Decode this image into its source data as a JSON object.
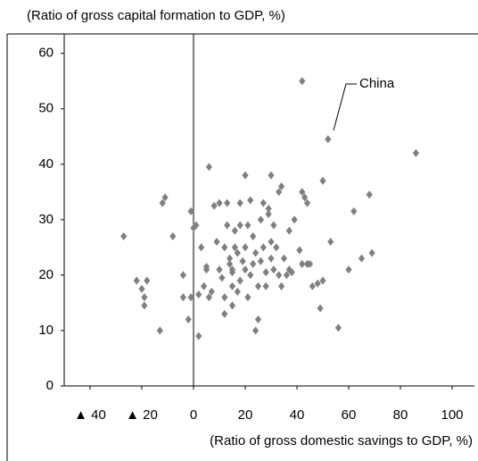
{
  "chart_data": {
    "type": "scatter",
    "y_label": "(Ratio of gross capital formation to GDP, %)",
    "x_label": "(Ratio of gross domestic savings to GDP, %)",
    "annotation": "China",
    "color": "#808080",
    "xlim": [
      -50,
      110
    ],
    "ylim": [
      0,
      63.5
    ],
    "xticks": [
      {
        "value": -40,
        "label": "▲ 40"
      },
      {
        "value": -20,
        "label": "▲ 20"
      },
      0,
      20,
      40,
      60,
      80,
      100
    ],
    "yticks": [
      0,
      10,
      20,
      30,
      40,
      50,
      60
    ],
    "x": [
      -27,
      -22,
      -20,
      -19,
      -18,
      -19,
      -13,
      -12,
      -11,
      -8,
      -4,
      -4,
      -2,
      -1,
      -1,
      1,
      0,
      2,
      2,
      3,
      5,
      4,
      5,
      6,
      6,
      7,
      8,
      9,
      10,
      10,
      11,
      12,
      12,
      12,
      13,
      13,
      14,
      14,
      15,
      15,
      15,
      15,
      16,
      16,
      17,
      17,
      18,
      18,
      18,
      19,
      20,
      20,
      20,
      21,
      21,
      22,
      22,
      23,
      23,
      24,
      24,
      25,
      25,
      26,
      26,
      27,
      27,
      28,
      28,
      29,
      29,
      30,
      30,
      30,
      31,
      31,
      32,
      33,
      33,
      34,
      34,
      35,
      36,
      37,
      37,
      38,
      39,
      41,
      42,
      42,
      42,
      43,
      44,
      44,
      45,
      46,
      48,
      50,
      49,
      50,
      52,
      53,
      56,
      60,
      62,
      65,
      68,
      69,
      86
    ],
    "y": [
      27,
      19,
      17.5,
      16,
      19,
      14.5,
      10,
      33,
      34,
      27,
      20,
      16,
      12,
      16,
      31.5,
      29,
      28.5,
      9,
      16.5,
      25,
      21,
      18,
      21.5,
      39.5,
      16,
      17,
      32.5,
      26,
      21,
      33,
      19.5,
      13,
      25,
      16,
      29,
      33,
      23,
      22,
      21,
      20.5,
      18,
      14.5,
      25,
      28,
      24,
      17,
      33,
      29,
      19,
      22.5,
      21,
      38,
      25,
      16,
      29,
      33.5,
      20,
      22,
      27,
      24,
      10,
      18,
      12,
      22.5,
      30,
      33,
      25,
      18,
      20.5,
      31,
      32,
      23,
      26,
      38,
      21,
      29,
      25,
      20,
      35,
      36,
      18,
      23,
      20,
      21,
      28,
      20.5,
      30,
      24.5,
      22,
      35,
      55,
      34,
      22,
      33,
      22,
      18,
      18.5,
      19,
      14,
      37,
      44.5,
      26,
      10.5,
      21,
      31.5,
      23,
      34.5,
      24,
      42
    ]
  }
}
